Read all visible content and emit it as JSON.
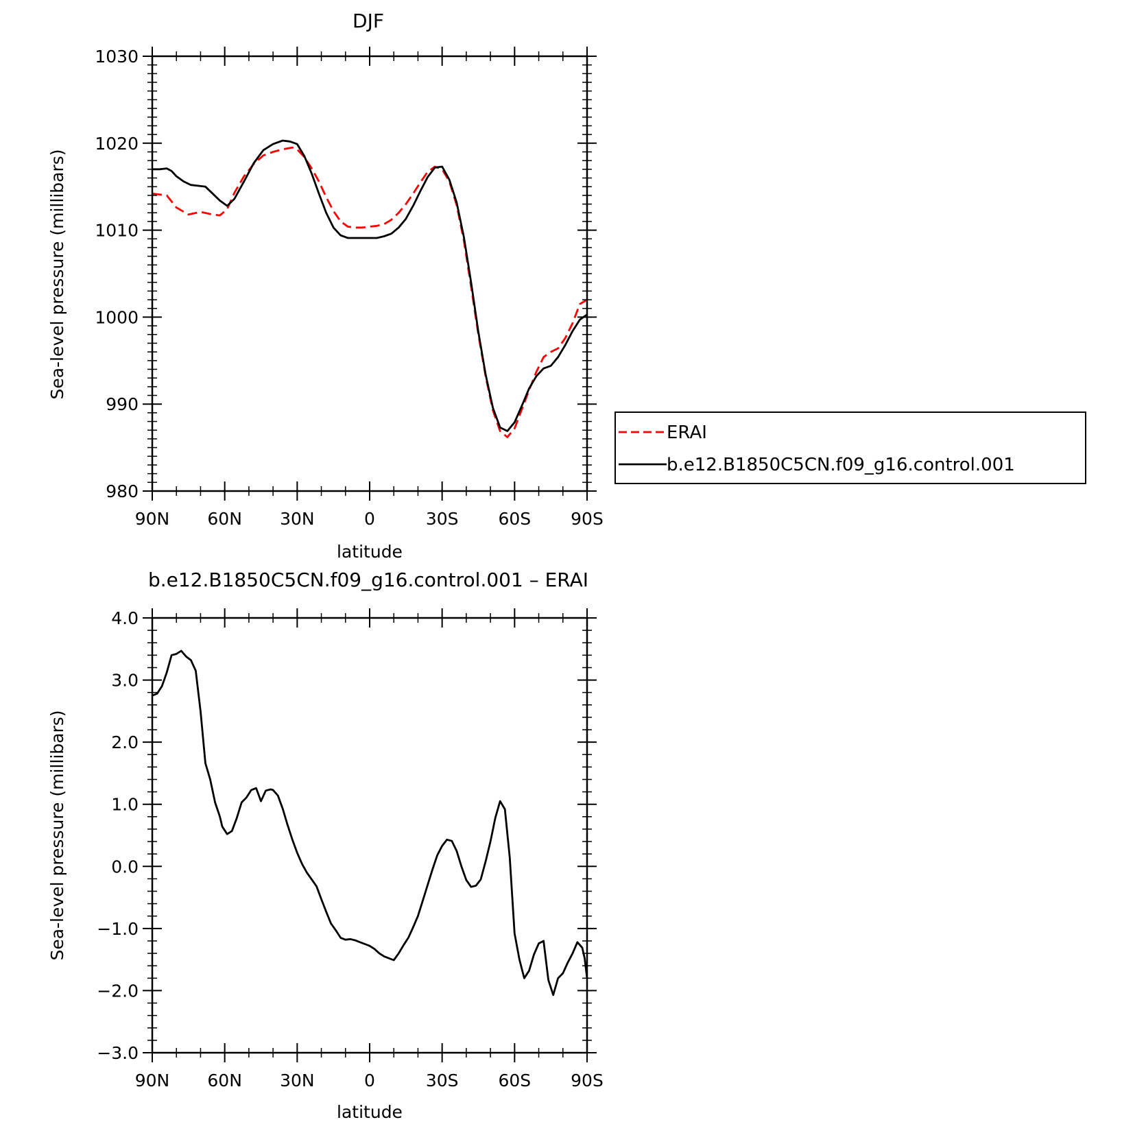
{
  "chart_data": [
    {
      "type": "line",
      "title": "DJF",
      "xlabel": "latitude",
      "ylabel": "Sea-level pressure (millibars)",
      "xlim": [
        90,
        -90
      ],
      "ylim": [
        980,
        1030
      ],
      "xticks": [
        {
          "value": 90,
          "label": "90N"
        },
        {
          "value": 60,
          "label": "60N"
        },
        {
          "value": 30,
          "label": "30N"
        },
        {
          "value": 0,
          "label": "0"
        },
        {
          "value": -30,
          "label": "30S"
        },
        {
          "value": -60,
          "label": "60S"
        },
        {
          "value": -90,
          "label": "90S"
        }
      ],
      "yticks": [
        {
          "value": 1030,
          "label": "1030"
        },
        {
          "value": 1020,
          "label": "1020"
        },
        {
          "value": 1010,
          "label": "1010"
        },
        {
          "value": 1000,
          "label": "1000"
        },
        {
          "value": 990,
          "label": "990"
        },
        {
          "value": 980,
          "label": "980"
        }
      ],
      "grid": false,
      "legend_position": "right",
      "series": [
        {
          "name": "ERAI",
          "color": "#ff0000",
          "dash": "dashed",
          "x": [
            90,
            84,
            80,
            75,
            70,
            65,
            62,
            59,
            56,
            52,
            48,
            44,
            40,
            36,
            32,
            30,
            27,
            24,
            21,
            18,
            15,
            12,
            9,
            6,
            3,
            0,
            -3,
            -6,
            -9,
            -12,
            -15,
            -18,
            -21,
            -24,
            -27,
            -30,
            -33,
            -36,
            -39,
            -42,
            -45,
            -48,
            -51,
            -54,
            -57,
            -60,
            -63,
            -66,
            -69,
            -72,
            -75,
            -78,
            -81,
            -84,
            -87,
            -90
          ],
          "y": [
            1014.2,
            1014.0,
            1012.6,
            1011.8,
            1012.1,
            1011.8,
            1011.7,
            1012.4,
            1014.3,
            1016.2,
            1017.6,
            1018.6,
            1019.0,
            1019.3,
            1019.5,
            1019.3,
            1018.4,
            1017.1,
            1015.6,
            1013.8,
            1012.2,
            1011.0,
            1010.4,
            1010.3,
            1010.3,
            1010.4,
            1010.5,
            1010.7,
            1011.2,
            1012.0,
            1013.0,
            1014.2,
            1015.5,
            1016.7,
            1017.3,
            1017.0,
            1015.6,
            1012.9,
            1008.8,
            1003.5,
            998.0,
            993.2,
            989.3,
            986.9,
            986.2,
            987.2,
            989.4,
            991.6,
            993.7,
            995.4,
            996.0,
            996.4,
            997.6,
            999.3,
            1001.5,
            1002.0
          ]
        },
        {
          "name": "b.e12.B1850C5CN.f09_g16.control.001",
          "color": "#000000",
          "dash": "solid",
          "x": [
            90,
            87,
            84,
            82,
            80,
            77,
            74,
            71,
            68,
            65,
            62,
            59,
            56,
            52,
            48,
            44,
            40,
            36,
            33,
            30,
            27,
            24,
            21,
            18,
            15,
            12,
            9,
            6,
            3,
            0,
            -3,
            -6,
            -9,
            -12,
            -15,
            -18,
            -21,
            -24,
            -27,
            -30,
            -33,
            -36,
            -39,
            -42,
            -45,
            -48,
            -51,
            -54,
            -57,
            -60,
            -63,
            -66,
            -69,
            -72,
            -75,
            -78,
            -81,
            -84,
            -87,
            -90
          ],
          "y": [
            1017.0,
            1017.0,
            1017.1,
            1016.8,
            1016.2,
            1015.6,
            1015.2,
            1015.1,
            1015.0,
            1014.2,
            1013.4,
            1012.8,
            1013.6,
            1015.6,
            1017.7,
            1019.2,
            1019.9,
            1020.3,
            1020.2,
            1019.9,
            1018.5,
            1016.5,
            1014.2,
            1012.0,
            1010.3,
            1009.4,
            1009.1,
            1009.1,
            1009.1,
            1009.1,
            1009.1,
            1009.3,
            1009.6,
            1010.3,
            1011.3,
            1012.8,
            1014.5,
            1016.1,
            1017.2,
            1017.3,
            1015.8,
            1013.2,
            1009.2,
            1004.0,
            998.3,
            993.4,
            989.6,
            987.3,
            986.9,
            987.9,
            989.8,
            991.8,
            993.2,
            994.1,
            994.4,
            995.4,
            996.8,
            998.4,
            999.7,
            1000.3
          ]
        }
      ]
    },
    {
      "type": "line",
      "title": "b.e12.B1850C5CN.f09_g16.control.001 – ERAI",
      "xlabel": "latitude",
      "ylabel": "Sea-level pressure (millibars)",
      "xlim": [
        90,
        -90
      ],
      "ylim": [
        -3.0,
        4.0
      ],
      "xticks": [
        {
          "value": 90,
          "label": "90N"
        },
        {
          "value": 60,
          "label": "60N"
        },
        {
          "value": 30,
          "label": "30N"
        },
        {
          "value": 0,
          "label": "0"
        },
        {
          "value": -30,
          "label": "30S"
        },
        {
          "value": -60,
          "label": "60S"
        },
        {
          "value": -90,
          "label": "90S"
        }
      ],
      "yticks": [
        {
          "value": 4.0,
          "label": "4.0"
        },
        {
          "value": 3.0,
          "label": "3.0"
        },
        {
          "value": 2.0,
          "label": "2.0"
        },
        {
          "value": 1.0,
          "label": "1.0"
        },
        {
          "value": 0.0,
          "label": "0.0"
        },
        {
          "value": -1.0,
          "label": "−1.0"
        },
        {
          "value": -2.0,
          "label": "−2.0"
        },
        {
          "value": -3.0,
          "label": "−3.0"
        }
      ],
      "grid": false,
      "series": [
        {
          "name": "",
          "color": "#000000",
          "dash": "solid",
          "x": [
            90,
            88,
            86,
            84,
            82,
            80,
            78,
            76,
            74,
            72,
            70,
            68,
            66,
            64,
            62,
            61,
            59,
            57,
            55,
            53,
            51,
            49,
            47,
            45,
            43,
            41,
            40,
            38,
            36,
            34,
            32,
            30,
            28,
            26,
            24,
            22,
            20,
            18,
            16,
            14,
            12,
            10,
            8,
            6,
            4,
            2,
            0,
            -2,
            -4,
            -6,
            -8,
            -10,
            -12,
            -14,
            -16,
            -18,
            -20,
            -22,
            -24,
            -26,
            -28,
            -30,
            -32,
            -34,
            -36,
            -38,
            -40,
            -42,
            -44,
            -46,
            -48,
            -50,
            -52,
            -54,
            -56,
            -58,
            -60,
            -62,
            -64,
            -66,
            -68,
            -70,
            -72,
            -74,
            -76,
            -78,
            -80,
            -82,
            -84,
            -86,
            -88,
            -89,
            -90
          ],
          "y": [
            2.75,
            2.78,
            2.9,
            3.12,
            3.4,
            3.42,
            3.47,
            3.38,
            3.32,
            3.15,
            2.5,
            1.66,
            1.4,
            1.03,
            0.8,
            0.64,
            0.52,
            0.57,
            0.78,
            1.03,
            1.11,
            1.23,
            1.26,
            1.05,
            1.22,
            1.24,
            1.23,
            1.14,
            0.93,
            0.67,
            0.43,
            0.22,
            0.04,
            -0.1,
            -0.21,
            -0.32,
            -0.53,
            -0.73,
            -0.92,
            -1.03,
            -1.15,
            -1.18,
            -1.17,
            -1.19,
            -1.22,
            -1.25,
            -1.28,
            -1.33,
            -1.4,
            -1.45,
            -1.48,
            -1.51,
            -1.4,
            -1.27,
            -1.15,
            -0.98,
            -0.8,
            -0.55,
            -0.3,
            -0.05,
            0.18,
            0.33,
            0.43,
            0.41,
            0.25,
            0.0,
            -0.22,
            -0.33,
            -0.31,
            -0.21,
            0.08,
            0.4,
            0.78,
            1.05,
            0.92,
            0.14,
            -1.08,
            -1.5,
            -1.8,
            -1.68,
            -1.42,
            -1.24,
            -1.2,
            -1.83,
            -2.07,
            -1.8,
            -1.72,
            -1.55,
            -1.4,
            -1.22,
            -1.31,
            -1.48,
            -1.8
          ]
        }
      ]
    }
  ]
}
